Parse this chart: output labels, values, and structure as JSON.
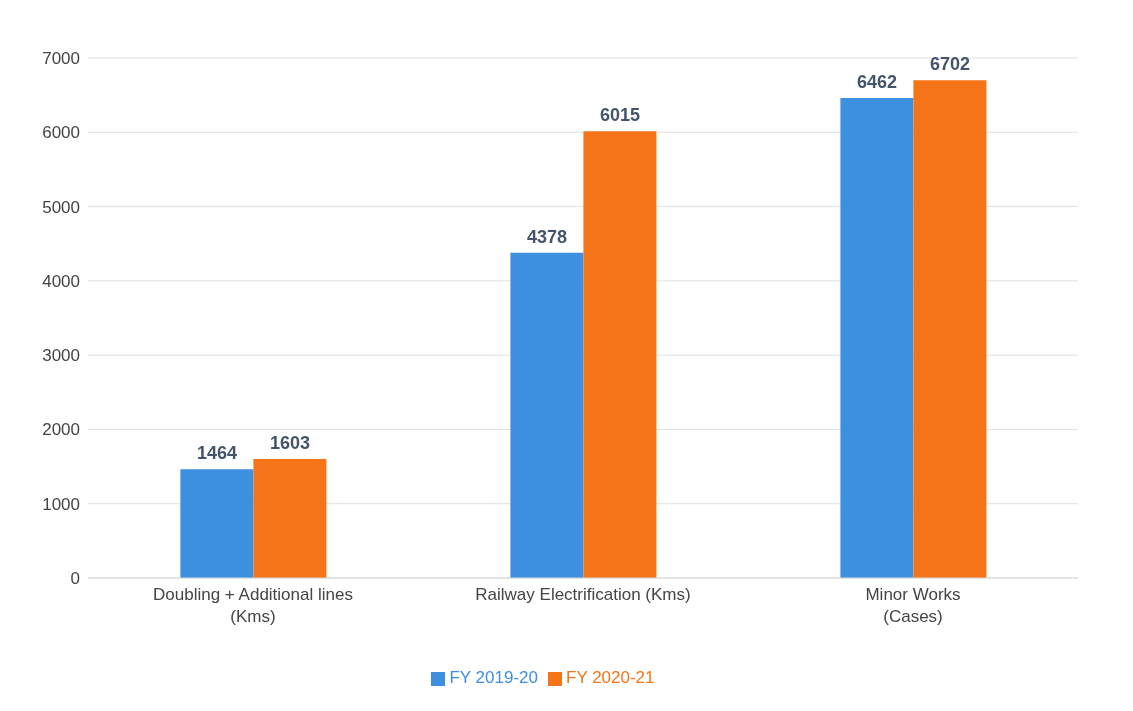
{
  "chart_data": {
    "type": "bar",
    "categories": [
      "Doubling + Additional lines\n(Kms)",
      "Railway Electrification (Kms)",
      "Minor Works\n(Cases)"
    ],
    "series": [
      {
        "name": "FY 2019-20",
        "color": "#3d8fe0",
        "values": [
          1464,
          4378,
          6462
        ]
      },
      {
        "name": "FY 2020-21",
        "color": "#f57418",
        "values": [
          1603,
          6015,
          6702
        ]
      }
    ],
    "ylim": [
      0,
      7000
    ],
    "yticks": [
      0,
      1000,
      2000,
      3000,
      4000,
      5000,
      6000,
      7000
    ],
    "grid": "y",
    "legend": "bottom",
    "data_labels": true
  }
}
